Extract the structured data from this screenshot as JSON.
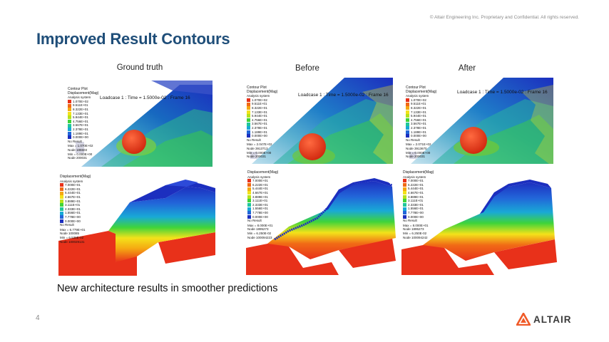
{
  "header": {
    "copyright": "© Altair Engineering Inc. Proprietary and Confidential. All rights reserved.",
    "title": "Improved Result Contours"
  },
  "columns": [
    {
      "label": "Ground truth",
      "top": {
        "plot_title": "Contour Plot",
        "quantity": "Displacement(Mag)",
        "system": "Analysis system",
        "levels": [
          "1.070E+02",
          "9.511E+01",
          "8.322E+01",
          "7.133E+01",
          "5.944E+01",
          "4.756E+01",
          "3.567E+01",
          "2.378E+01",
          "1.189E+01",
          "0.000E+00"
        ],
        "no_result": "No Result",
        "max": "Max = 1.070E+02",
        "node_max": "Node 185503",
        "min": "Min = 0.000E+00",
        "node_min": "Node 200031",
        "loadcase": "Loadcase 1 : Time = 1.5000e-02 : Frame 16"
      },
      "bottom": {
        "quantity": "Displacement(Mag)",
        "system": "Analysis system",
        "levels": [
          "7.000E+01",
          "6.222E+01",
          "5.444E+01",
          "4.667E+01",
          "3.889E+01",
          "3.111E+01",
          "2.333E+01",
          "1.556E+01",
          "7.778E+00",
          "0.000E+00"
        ],
        "no_result": "No Result",
        "max": "Max = 6.779E+01",
        "node_max": "Node 100085",
        "min": "Min = 6.539E-02",
        "node_min": "Node 100029131"
      }
    },
    {
      "label": "Before",
      "top": {
        "plot_title": "Contour Plot",
        "quantity": "Displacement(Mag)",
        "system": "Analysis system",
        "levels": [
          "1.070E+02",
          "9.511E+01",
          "8.322E+01",
          "7.133E+01",
          "5.944E+01",
          "4.756E+01",
          "3.567E+01",
          "2.378E+01",
          "1.189E+01",
          "0.000E+00"
        ],
        "no_result": "No Result",
        "max": "Max = 2.047E+02",
        "node_max": "Node 3913713",
        "min": "Min = 0.000E+00",
        "node_min": "Node 200031",
        "loadcase": "Loadcase 1 : Time = 1.5000e-02 : Frame 16"
      },
      "bottom": {
        "quantity": "Displacement(Mag)",
        "system": "Analysis system",
        "levels": [
          "7.000E+01",
          "6.222E+01",
          "5.444E+01",
          "4.667E+01",
          "3.889E+01",
          "3.111E+01",
          "2.333E+01",
          "1.556E+01",
          "7.778E+00",
          "0.000E+00"
        ],
        "no_result": "No Result",
        "max": "Max = 8.000E+01",
        "node_max": "Node 1895273",
        "min": "Min = 6.250E-02",
        "node_min": "Node 100094223"
      }
    },
    {
      "label": "After",
      "top": {
        "plot_title": "Contour Plot",
        "quantity": "Displacement(Mag)",
        "system": "Analysis system",
        "levels": [
          "1.070E+02",
          "9.511E+01",
          "8.322E+01",
          "7.133E+01",
          "5.944E+01",
          "4.756E+01",
          "3.567E+01",
          "2.378E+01",
          "1.189E+01",
          "0.000E+00"
        ],
        "no_result": "No Result",
        "max": "Max = 2.071E+02",
        "node_max": "Node 3913670",
        "min": "Min = 0.000E+00",
        "node_min": "Node 200031",
        "loadcase": "Loadcase 1 : Time = 1.5000e-02 : Frame 16"
      },
      "bottom": {
        "quantity": "Displacement(Mag)",
        "system": "Analysis system",
        "levels": [
          "7.000E+01",
          "6.222E+01",
          "5.444E+01",
          "4.667E+01",
          "3.889E+01",
          "3.111E+01",
          "2.333E+01",
          "1.556E+01",
          "7.778E+00",
          "0.000E+00"
        ],
        "no_result": "No Result",
        "max": "Max = 8.000E+01",
        "node_max": "Node 1895273",
        "min": "Min = 6.250E-02",
        "node_min": "Node 100094242"
      }
    }
  ],
  "colors": {
    "title": "#1f4e79",
    "scale_top": [
      "#e8311a",
      "#f16a16",
      "#f5a812",
      "#f3e21a",
      "#b6e21b",
      "#3fd43a",
      "#1fc79a",
      "#19a9d6",
      "#2266d9",
      "#1c2fbf"
    ],
    "scale_bottom": [
      "#e8311a",
      "#f16a16",
      "#f5a812",
      "#f3e21a",
      "#b6e21b",
      "#3fd43a",
      "#1fc79a",
      "#19a9d6",
      "#2266d9",
      "#1c2fbf"
    ],
    "logo": "#f05a28"
  },
  "caption": "New architecture results in smoother predictions",
  "footer": {
    "page_number": "4",
    "logo_text": "ALTAIR",
    "logo_icon": "altair-triangle-icon"
  }
}
